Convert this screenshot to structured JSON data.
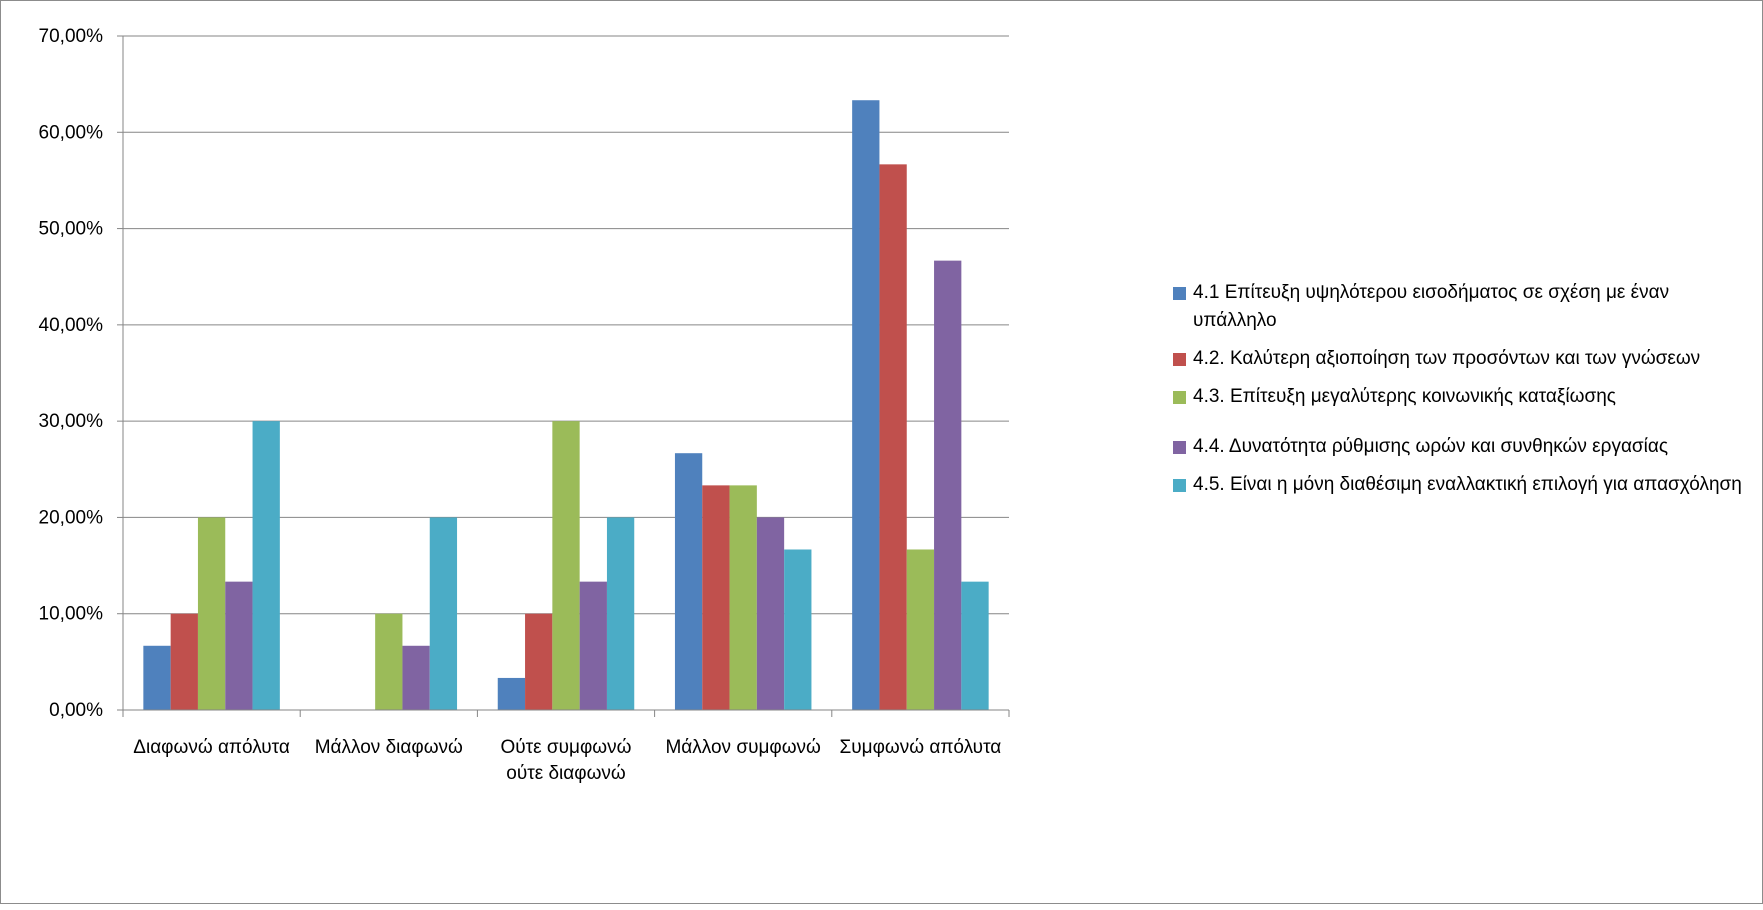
{
  "chart_data": {
    "type": "bar",
    "categories": [
      [
        "Διαφωνώ απόλυτα"
      ],
      [
        "Μάλλον διαφωνώ"
      ],
      [
        "Ούτε συμφωνώ",
        "ούτε διαφωνώ"
      ],
      [
        "Μάλλον συμφωνώ"
      ],
      [
        "Συμφωνώ απόλυτα"
      ]
    ],
    "series": [
      {
        "name": "4.1 Επίτευξη υψηλότερου εισοδήματος σε σχέση με έναν υπάλληλο",
        "color": "#4f81bd",
        "values": [
          6.67,
          0,
          3.33,
          26.67,
          63.33
        ]
      },
      {
        "name": "4.2. Καλύτερη αξιοποίηση των προσόντων και των γνώσεων",
        "color": "#c0504d",
        "values": [
          10,
          0,
          10,
          23.33,
          56.67
        ]
      },
      {
        "name": "4.3. Επίτευξη μεγαλύτερης κοινωνικής καταξίωσης",
        "color": "#9bbb59",
        "values": [
          20,
          10,
          30,
          23.33,
          16.67
        ]
      },
      {
        "name": "4.4. Δυνατότητα ρύθμισης ωρών και συνθηκών εργασίας",
        "color": "#8064a2",
        "values": [
          13.33,
          6.67,
          13.33,
          20,
          46.67
        ]
      },
      {
        "name": "4.5. Είναι η μόνη διαθέσιμη εναλλακτική επιλογή για απασχόληση",
        "color": "#4bacc6",
        "values": [
          30,
          20,
          20,
          16.67,
          13.33
        ]
      }
    ],
    "y_ticks": [
      "0,00%",
      "10,00%",
      "20,00%",
      "30,00%",
      "40,00%",
      "50,00%",
      "60,00%",
      "70,00%"
    ],
    "ylim": [
      0,
      70
    ],
    "grid": true,
    "legend_position": "right"
  }
}
